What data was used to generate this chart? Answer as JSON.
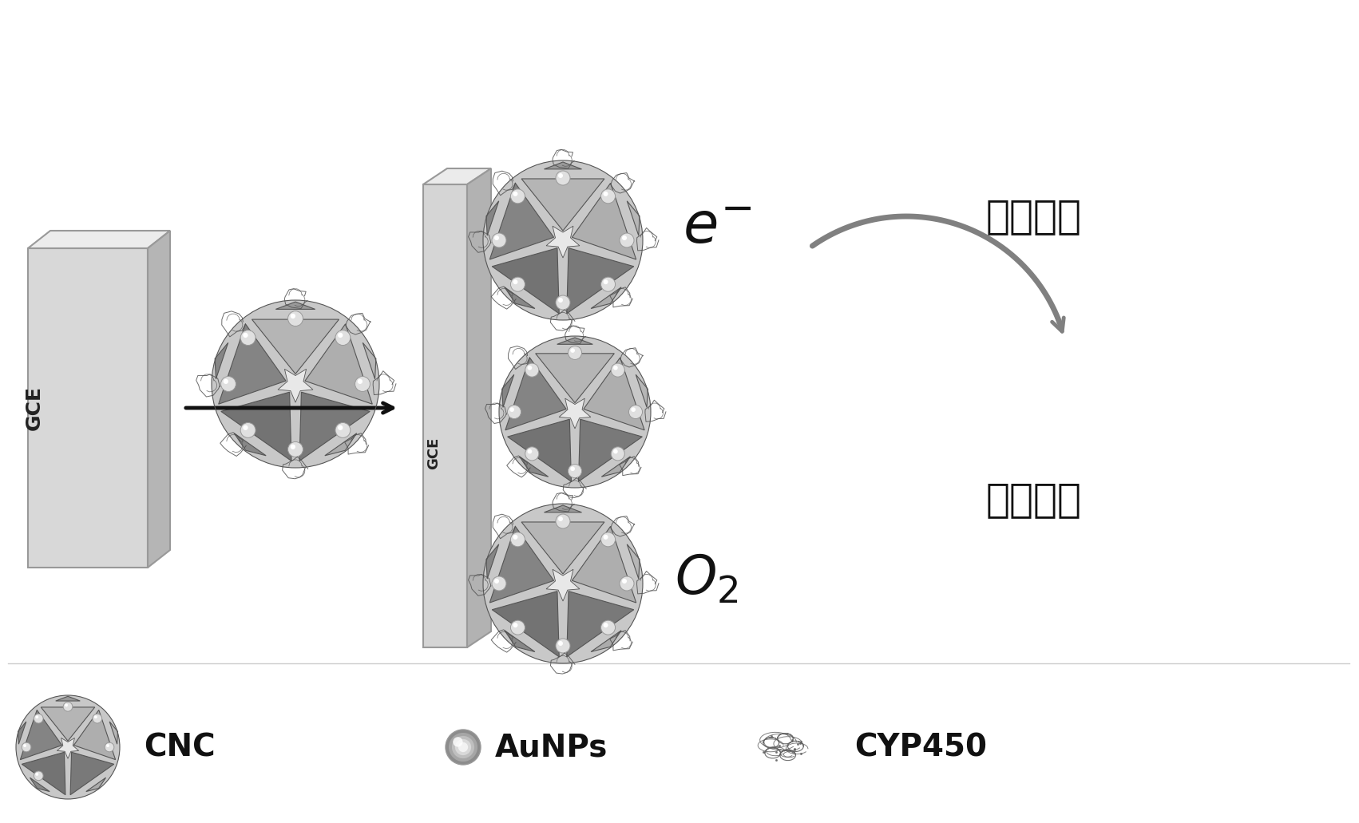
{
  "background_color": "#ffffff",
  "gce_label": "GCE",
  "arrow_color": "#111111",
  "e_minus_label": "e",
  "e_minus_super": "-",
  "o2_label": "O",
  "o2_sub": "2",
  "target_label": "目标底物",
  "product_label": "代谢产物",
  "cnc_label": "CNC",
  "aunps_label": "AuNPs",
  "cyp450_label": "CYP450",
  "text_color": "#111111",
  "panel_dark": "#707070",
  "panel_mid": "#909090",
  "panel_light": "#b8b8b8",
  "gce_front": "#d5d5d5",
  "gce_top": "#e8e8e8",
  "gce_side": "#b0b0b0",
  "aunp_color": "#d8d8d8",
  "curved_arrow_color": "#808080"
}
